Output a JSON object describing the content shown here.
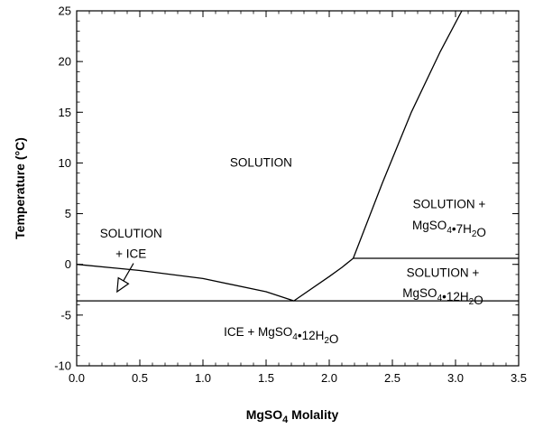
{
  "chart_data": {
    "type": "line",
    "xlabel_base": "MgSO",
    "xlabel_sub": "4",
    "xlabel_rest": " Molality",
    "ylabel": "Temperature (°C)",
    "xlim": [
      0,
      3.5
    ],
    "ylim": [
      -10,
      25
    ],
    "x_ticks": [
      "0.0",
      "0.5",
      "1.0",
      "1.5",
      "2.0",
      "2.5",
      "3.0",
      "3.5"
    ],
    "y_ticks": [
      "-10",
      "-5",
      "0",
      "5",
      "10",
      "15",
      "20",
      "25"
    ],
    "series": [
      {
        "points": [
          [
            0,
            0
          ],
          [
            0.5,
            -0.6
          ],
          [
            1.0,
            -1.4
          ],
          [
            1.5,
            -2.7
          ],
          [
            1.72,
            -3.6
          ]
        ]
      },
      {
        "points": [
          [
            1.72,
            -3.6
          ],
          [
            2.0,
            -1.2
          ],
          [
            2.1,
            -0.3
          ],
          [
            2.19,
            0.6
          ]
        ]
      },
      {
        "points": [
          [
            2.19,
            0.6
          ],
          [
            2.42,
            8
          ],
          [
            2.65,
            15
          ],
          [
            2.88,
            21
          ],
          [
            3.05,
            25
          ]
        ]
      },
      {
        "points": [
          [
            2.19,
            0.6
          ],
          [
            3.5,
            0.6
          ]
        ]
      },
      {
        "points": [
          [
            0,
            -3.6
          ],
          [
            3.5,
            -3.6
          ]
        ]
      }
    ],
    "regions": [
      {
        "id": "solution",
        "x": 1.46,
        "y": 10.1,
        "parts": [
          {
            "t": "SOLUTION"
          }
        ]
      },
      {
        "id": "solution-ice-1",
        "x": 0.43,
        "y": 3.1,
        "parts": [
          {
            "t": "SOLUTION"
          }
        ]
      },
      {
        "id": "solution-ice-2",
        "x": 0.43,
        "y": 1.1,
        "parts": [
          {
            "t": "+ ICE"
          }
        ]
      },
      {
        "id": "solution-epsomite-1",
        "x": 2.95,
        "y": 6.0,
        "parts": [
          {
            "t": "SOLUTION +"
          }
        ]
      },
      {
        "id": "solution-epsomite-2",
        "x": 2.95,
        "y": 3.9,
        "parts": [
          {
            "t": "MgSO"
          },
          {
            "t": "4",
            "sub": true
          },
          {
            "t": "•7H"
          },
          {
            "t": "2",
            "sub": true
          },
          {
            "t": "O"
          }
        ]
      },
      {
        "id": "solution-meridianiite-1",
        "x": 2.9,
        "y": -0.8,
        "parts": [
          {
            "t": "SOLUTION +"
          }
        ]
      },
      {
        "id": "solution-meridianiite-2",
        "x": 2.9,
        "y": -2.8,
        "parts": [
          {
            "t": "MgSO"
          },
          {
            "t": "4",
            "sub": true
          },
          {
            "t": "•12H"
          },
          {
            "t": "2",
            "sub": true
          },
          {
            "t": "O"
          }
        ]
      },
      {
        "id": "ice-meridianiite",
        "x": 1.62,
        "y": -6.6,
        "parts": [
          {
            "t": "ICE + MgSO"
          },
          {
            "t": "4",
            "sub": true
          },
          {
            "t": "•12H"
          },
          {
            "t": "2",
            "sub": true
          },
          {
            "t": "O"
          }
        ]
      }
    ],
    "arrow": {
      "from": [
        0.45,
        0.1
      ],
      "to": [
        0.32,
        -2.7
      ]
    }
  }
}
